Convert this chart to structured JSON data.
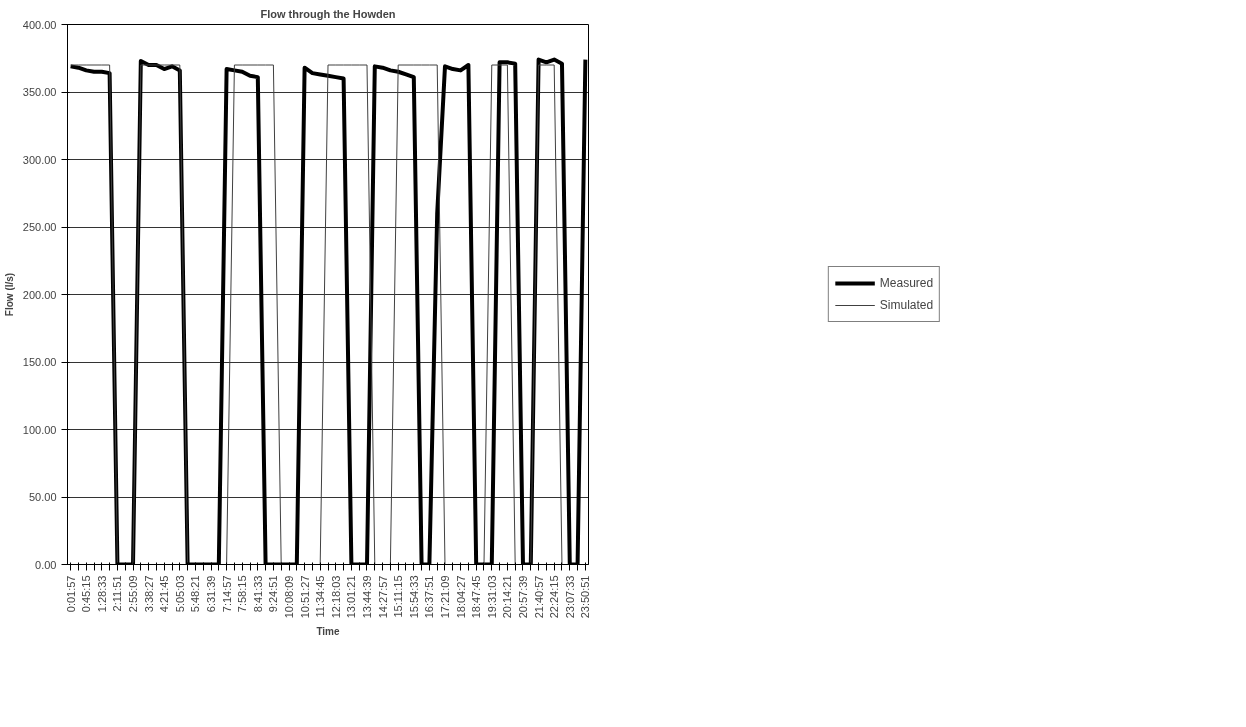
{
  "chart_data": {
    "type": "line",
    "title": "Flow through the Howden",
    "xlabel": "Time",
    "ylabel": "Flow (l/s)",
    "categories": [
      "0:01:57",
      null,
      "0:45:15",
      null,
      "1:28:33",
      null,
      "2:11:51",
      null,
      "2:55:09",
      null,
      "3:38:27",
      null,
      "4:21:45",
      null,
      "5:05:03",
      null,
      "5:48:21",
      null,
      "6:31:39",
      null,
      "7:14:57",
      null,
      "7:58:15",
      null,
      "8:41:33",
      null,
      "9:24:51",
      null,
      "10:08:09",
      null,
      "10:51:27",
      null,
      "11:34:45",
      null,
      "12:18:03",
      null,
      "13:01:21",
      null,
      "13:44:39",
      null,
      "14:27:57",
      null,
      "15:11:15",
      null,
      "15:54:33",
      null,
      "16:37:51",
      null,
      "17:21:09",
      null,
      "18:04:27",
      null,
      "18:47:45",
      null,
      "19:31:03",
      null,
      "20:14:21",
      null,
      "20:57:39",
      null,
      "21:40:57",
      null,
      "22:24:15",
      null,
      "23:07:33",
      null,
      "23:50:51"
    ],
    "series": [
      {
        "name": "Measured",
        "color": "#000000",
        "values": [
          369,
          368,
          366,
          365,
          365,
          364,
          0,
          0,
          0,
          373,
          370,
          370,
          367,
          369,
          366,
          0,
          0,
          0,
          0,
          0,
          367,
          366,
          365,
          362,
          361,
          0,
          0,
          0,
          0,
          0,
          368,
          364,
          363,
          362,
          361,
          360,
          0,
          0,
          0,
          369,
          368,
          366,
          365,
          363,
          361,
          0,
          0,
          260,
          369,
          367,
          366,
          370,
          0,
          0,
          0,
          372,
          372,
          371,
          0,
          0,
          374,
          372,
          374,
          371,
          0,
          0,
          374
        ]
      },
      {
        "name": "Simulated",
        "color": "#404040",
        "values": [
          370,
          370,
          370,
          370,
          370,
          370,
          0,
          0,
          0,
          370,
          370,
          370,
          370,
          370,
          370,
          0,
          0,
          0,
          0,
          0,
          0,
          370,
          370,
          370,
          370,
          370,
          370,
          0,
          0,
          0,
          0,
          0,
          0,
          370,
          370,
          370,
          370,
          370,
          370,
          0,
          0,
          0,
          370,
          370,
          370,
          370,
          370,
          370,
          0,
          0,
          0,
          0,
          0,
          0,
          370,
          370,
          370,
          0,
          0,
          0,
          370,
          370,
          370,
          0,
          0,
          0,
          0
        ]
      }
    ],
    "ylim": [
      0,
      400
    ],
    "yticks": [
      {
        "value": 0,
        "label": "0.00"
      },
      {
        "value": 50,
        "label": "50.00"
      },
      {
        "value": 100,
        "label": "100.00"
      },
      {
        "value": 150,
        "label": "150.00"
      },
      {
        "value": 200,
        "label": "200.00"
      },
      {
        "value": 250,
        "label": "250.00"
      },
      {
        "value": 300,
        "label": "300.00"
      },
      {
        "value": 350,
        "label": "350.00"
      },
      {
        "value": 400,
        "label": "400.00"
      }
    ],
    "grid": "y",
    "legend": "right",
    "marker": "none",
    "line_style": "solid"
  }
}
